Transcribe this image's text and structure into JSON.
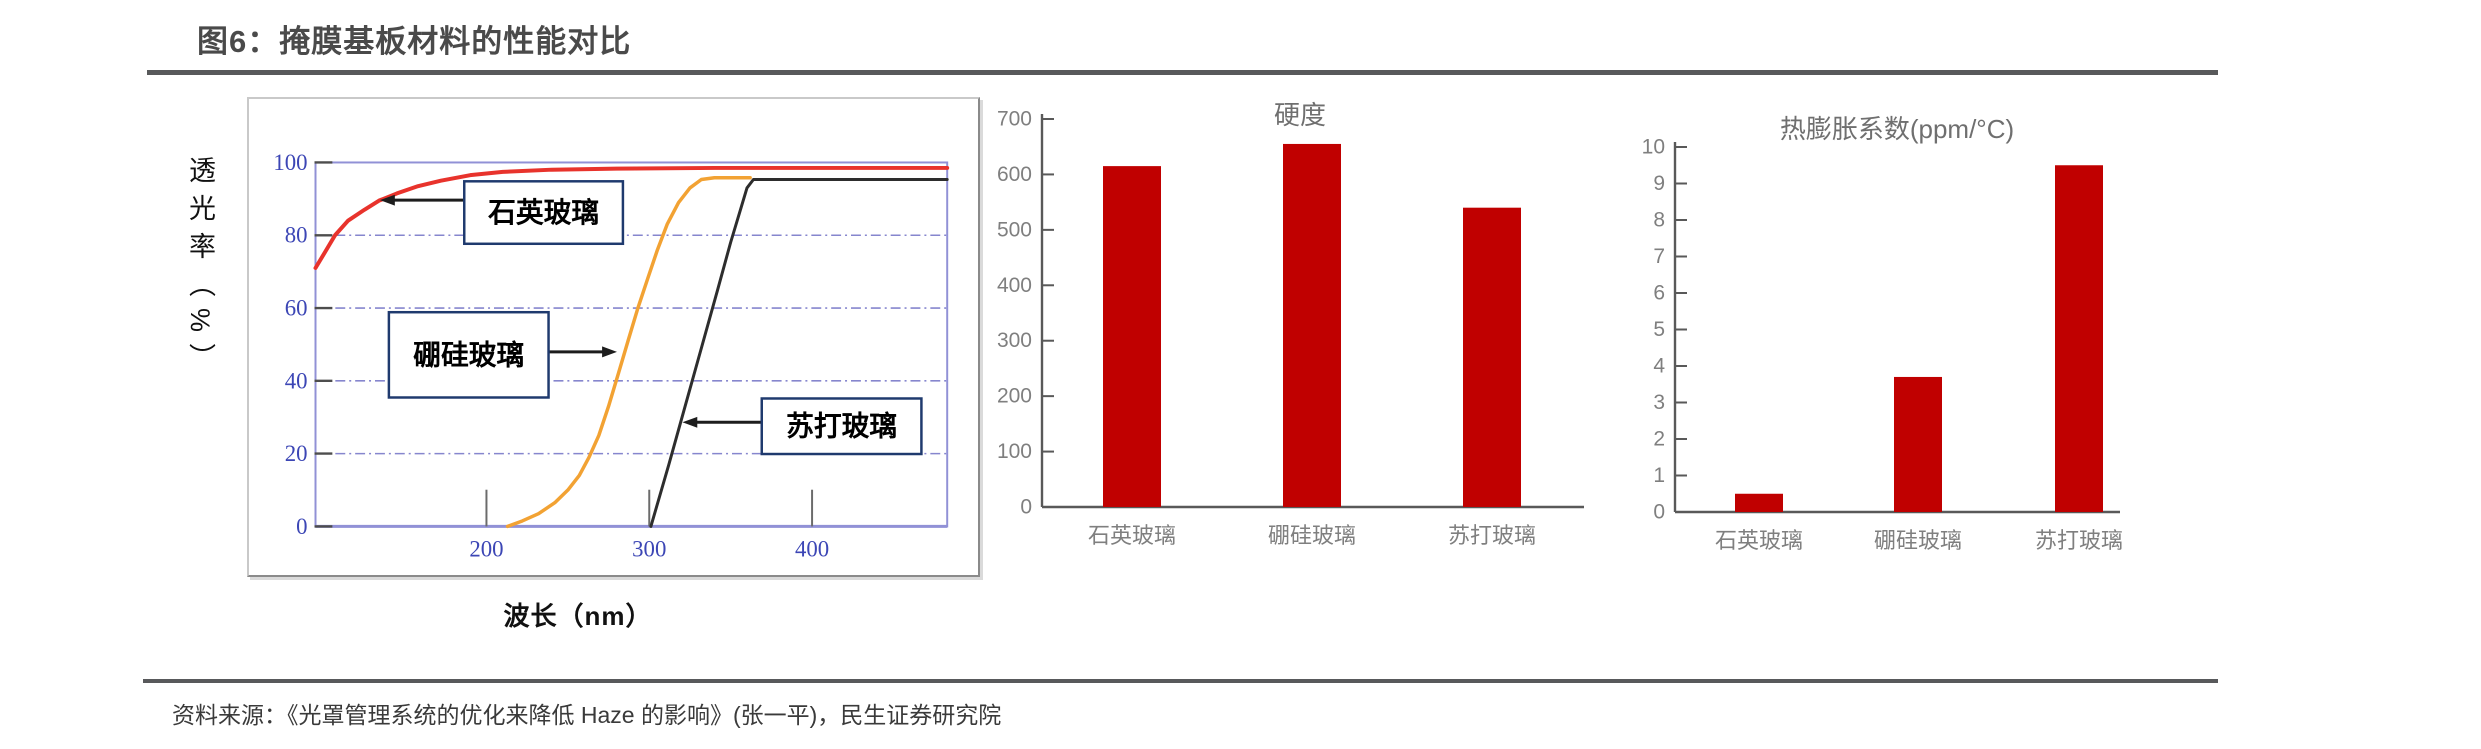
{
  "page": {
    "title": "图6：掩膜基板材料的性能对比",
    "source": "资料来源：《光罩管理系统的优化来降低 Haze 的影响》(张一平)，民生证券研究院"
  },
  "colors": {
    "bar_red": "#c00000",
    "quartz_line": "#e8332c",
    "boro_line": "#f2a233",
    "soda_line": "#2d2d2d",
    "grid_blue": "#8080cc",
    "plot_border": "#9191d6",
    "tick_blue": "#3c46b5",
    "axis_gray": "#595959",
    "label_gray": "#7f7f7f",
    "title_gray": "#6f6f6f",
    "callout_border": "#1f3a6e"
  },
  "chart_data": [
    {
      "type": "line",
      "id": "transmittance",
      "title": "",
      "xlabel": "波长（nm）",
      "ylabel": "透光率（%）",
      "xlim": [
        95,
        483
      ],
      "ylim": [
        0,
        100
      ],
      "xticks": [
        200,
        300,
        400
      ],
      "yticks": [
        100,
        80,
        60,
        40,
        20,
        0
      ],
      "grid": "horizontal dash-dot lines at 20/40/60/80",
      "legend_position": "inline callout boxes with arrows",
      "series": [
        {
          "name": "石英玻璃",
          "points": [
            [
              95,
              71
            ],
            [
              101,
              75.5
            ],
            [
              107,
              80
            ],
            [
              115,
              84
            ],
            [
              125,
              87
            ],
            [
              134,
              89.5
            ],
            [
              145,
              91.5
            ],
            [
              158,
              93.5
            ],
            [
              172,
              95
            ],
            [
              190,
              96.5
            ],
            [
              210,
              97.4
            ],
            [
              240,
              98
            ],
            [
              280,
              98.3
            ],
            [
              340,
              98.5
            ],
            [
              483,
              98.5
            ]
          ]
        },
        {
          "name": "硼硅玻璃",
          "points": [
            [
              213,
              0
            ],
            [
              222,
              1.5
            ],
            [
              232,
              3.5
            ],
            [
              242,
              6.5
            ],
            [
              250,
              10
            ],
            [
              257,
              14
            ],
            [
              263,
              19
            ],
            [
              269,
              25
            ],
            [
              275,
              33
            ],
            [
              281,
              42
            ],
            [
              287,
              51
            ],
            [
              293,
              60
            ],
            [
              299,
              68
            ],
            [
              305,
              76
            ],
            [
              311,
              83
            ],
            [
              318,
              89
            ],
            [
              325,
              93
            ],
            [
              332,
              95.3
            ],
            [
              340,
              95.8
            ],
            [
              362,
              95.8
            ]
          ]
        },
        {
          "name": "苏打玻璃",
          "points": [
            [
              301,
              0
            ],
            [
              312,
              17
            ],
            [
              322,
              33
            ],
            [
              332,
              49
            ],
            [
              342,
              65
            ],
            [
              350,
              78
            ],
            [
              356,
              87
            ],
            [
              360,
              93
            ],
            [
              364,
              95.3
            ],
            [
              483,
              95.3
            ]
          ]
        }
      ],
      "annotations": [
        "石英玻璃",
        "硼硅玻璃",
        "苏打玻璃"
      ]
    },
    {
      "type": "bar",
      "id": "hardness",
      "title": "硬度",
      "categories": [
        "石英玻璃",
        "硼硅玻璃",
        "苏打玻璃"
      ],
      "values": [
        615,
        655,
        540
      ],
      "ylim": [
        0,
        700
      ],
      "ytick_step": 100,
      "grid": false,
      "legend_position": "none"
    },
    {
      "type": "bar",
      "id": "cte",
      "title": "热膨胀系数(ppm/°C)",
      "categories": [
        "石英玻璃",
        "硼硅玻璃",
        "苏打玻璃"
      ],
      "values": [
        0.5,
        3.7,
        9.5
      ],
      "ylim": [
        0,
        10
      ],
      "ytick_step": 1,
      "grid": false,
      "legend_position": "none"
    }
  ]
}
